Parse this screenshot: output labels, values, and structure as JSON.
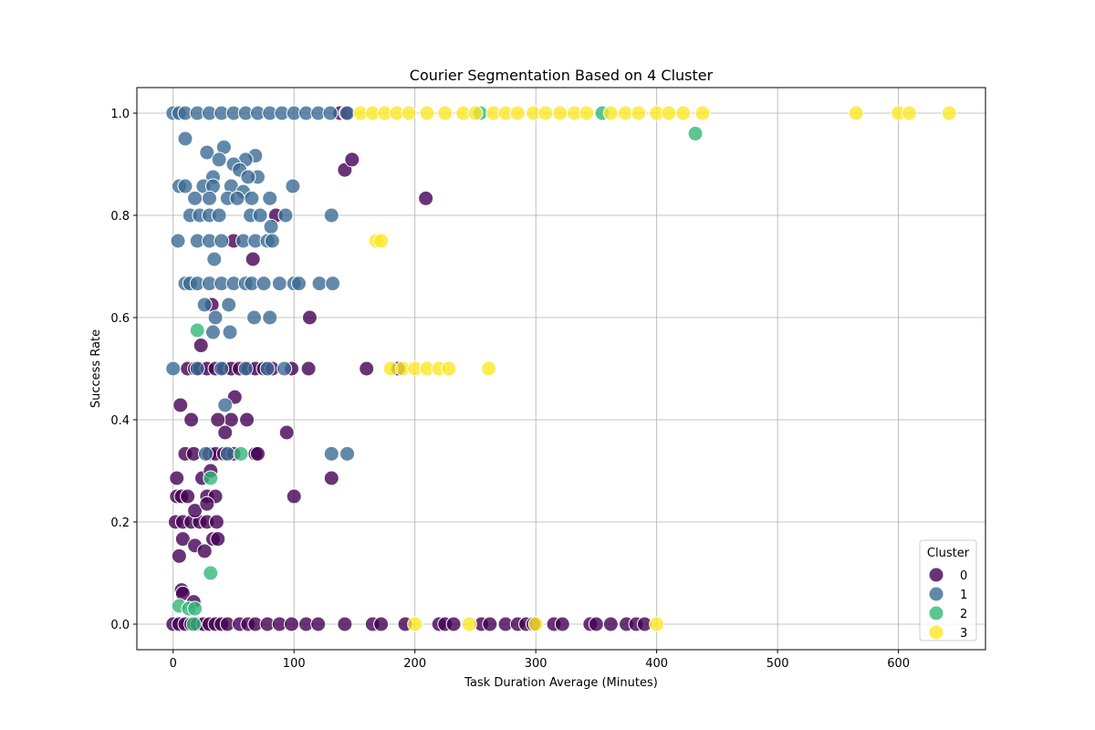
{
  "chart_data": {
    "type": "scatter",
    "title": "Courier Segmentation Based on 4 Cluster",
    "xlabel": "Task Duration Average (Minutes)",
    "ylabel": "Success Rate",
    "xlim": [
      -30,
      672
    ],
    "ylim": [
      -0.05,
      1.05
    ],
    "x_ticks": [
      0,
      100,
      200,
      300,
      400,
      500,
      600
    ],
    "y_ticks": [
      0.0,
      0.2,
      0.4,
      0.6,
      0.8,
      1.0
    ],
    "x_tick_labels": [
      "0",
      "100",
      "200",
      "300",
      "400",
      "500",
      "600"
    ],
    "y_tick_labels": [
      "0.0",
      "0.2",
      "0.4",
      "0.6",
      "0.8",
      "1.0"
    ],
    "grid": true,
    "legend": {
      "title": "Cluster",
      "placement": "lower-right",
      "entries": [
        "0",
        "1",
        "2",
        "3"
      ]
    },
    "series": [
      {
        "name": "0",
        "color": "#440154",
        "points": [
          [
            0,
            0
          ],
          [
            5,
            0
          ],
          [
            10,
            0
          ],
          [
            15,
            0
          ],
          [
            20,
            0
          ],
          [
            25,
            0
          ],
          [
            30,
            0
          ],
          [
            35,
            0
          ],
          [
            40,
            0
          ],
          [
            45,
            0
          ],
          [
            55,
            0
          ],
          [
            62,
            0
          ],
          [
            68,
            0
          ],
          [
            78,
            0
          ],
          [
            88,
            0
          ],
          [
            98,
            0
          ],
          [
            110,
            0
          ],
          [
            120,
            0
          ],
          [
            142,
            0
          ],
          [
            165,
            0
          ],
          [
            172,
            0
          ],
          [
            192,
            0
          ],
          [
            220,
            0
          ],
          [
            225,
            0
          ],
          [
            232,
            0
          ],
          [
            255,
            0
          ],
          [
            262,
            0
          ],
          [
            275,
            0
          ],
          [
            285,
            0
          ],
          [
            292,
            0
          ],
          [
            298,
            0
          ],
          [
            315,
            0
          ],
          [
            322,
            0
          ],
          [
            345,
            0
          ],
          [
            350,
            0
          ],
          [
            362,
            0
          ],
          [
            375,
            0
          ],
          [
            383,
            0
          ],
          [
            390,
            0
          ],
          [
            2,
            0.2
          ],
          [
            8,
            0.2
          ],
          [
            15,
            0.2
          ],
          [
            22,
            0.2
          ],
          [
            28,
            0.2
          ],
          [
            36,
            0.2
          ],
          [
            3,
            0.25
          ],
          [
            7,
            0.25
          ],
          [
            12,
            0.25
          ],
          [
            28,
            0.25
          ],
          [
            35,
            0.25
          ],
          [
            100,
            0.25
          ],
          [
            3,
            0.2857
          ],
          [
            24,
            0.2857
          ],
          [
            131,
            0.2857
          ],
          [
            8,
            0.1667
          ],
          [
            33,
            0.1667
          ],
          [
            37,
            0.1667
          ],
          [
            18,
            0.1538
          ],
          [
            26,
            0.1429
          ],
          [
            5,
            0.1333
          ],
          [
            7,
            0.0667
          ],
          [
            8,
            0.06
          ],
          [
            17,
            0.0435
          ],
          [
            18,
            0.2222
          ],
          [
            28,
            0.2353
          ],
          [
            31,
            0.3
          ],
          [
            10,
            0.3333
          ],
          [
            17,
            0.3333
          ],
          [
            30,
            0.3333
          ],
          [
            35,
            0.3333
          ],
          [
            42,
            0.3333
          ],
          [
            50,
            0.3333
          ],
          [
            68,
            0.3333
          ],
          [
            70,
            0.3333
          ],
          [
            48,
            0.4
          ],
          [
            37,
            0.4
          ],
          [
            15,
            0.4
          ],
          [
            61,
            0.4
          ],
          [
            6,
            0.4286
          ],
          [
            43,
            0.375
          ],
          [
            51,
            0.4444
          ],
          [
            94,
            0.375
          ],
          [
            12,
            0.5
          ],
          [
            18,
            0.5
          ],
          [
            22,
            0.5
          ],
          [
            28,
            0.5
          ],
          [
            35,
            0.5
          ],
          [
            42,
            0.5
          ],
          [
            48,
            0.5
          ],
          [
            55,
            0.5
          ],
          [
            62,
            0.5
          ],
          [
            68,
            0.5
          ],
          [
            75,
            0.5
          ],
          [
            82,
            0.5
          ],
          [
            98,
            0.5
          ],
          [
            112,
            0.5
          ],
          [
            160,
            0.5
          ],
          [
            186,
            0.5
          ],
          [
            23,
            0.5455
          ],
          [
            113,
            0.6
          ],
          [
            32,
            0.625
          ],
          [
            66,
            0.7143
          ],
          [
            50,
            0.75
          ],
          [
            85,
            0.8
          ],
          [
            142,
            0.8889
          ],
          [
            148,
            0.9091
          ],
          [
            209,
            0.8333
          ],
          [
            138,
            1.0
          ],
          [
            143,
            1.0
          ]
        ]
      },
      {
        "name": "1",
        "color": "#3b6b95",
        "points": [
          [
            0,
            1.0
          ],
          [
            5,
            1.0
          ],
          [
            10,
            1.0
          ],
          [
            20,
            1.0
          ],
          [
            30,
            1.0
          ],
          [
            40,
            1.0
          ],
          [
            50,
            1.0
          ],
          [
            60,
            1.0
          ],
          [
            70,
            1.0
          ],
          [
            80,
            1.0
          ],
          [
            90,
            1.0
          ],
          [
            100,
            1.0
          ],
          [
            110,
            1.0
          ],
          [
            120,
            1.0
          ],
          [
            130,
            1.0
          ],
          [
            144,
            1.0
          ],
          [
            10,
            0.95
          ],
          [
            42,
            0.9333
          ],
          [
            28,
            0.9231
          ],
          [
            68,
            0.9167
          ],
          [
            38,
            0.9091
          ],
          [
            60,
            0.9091
          ],
          [
            50,
            0.9
          ],
          [
            55,
            0.8889
          ],
          [
            70,
            0.875
          ],
          [
            33,
            0.875
          ],
          [
            62,
            0.875
          ],
          [
            5,
            0.8571
          ],
          [
            10,
            0.8571
          ],
          [
            25,
            0.8571
          ],
          [
            33,
            0.8571
          ],
          [
            48,
            0.8571
          ],
          [
            58,
            0.8462
          ],
          [
            99,
            0.8571
          ],
          [
            18,
            0.8333
          ],
          [
            30,
            0.8333
          ],
          [
            45,
            0.8333
          ],
          [
            53,
            0.8333
          ],
          [
            65,
            0.8333
          ],
          [
            80,
            0.8333
          ],
          [
            14,
            0.8
          ],
          [
            22,
            0.8
          ],
          [
            30,
            0.8
          ],
          [
            38,
            0.8
          ],
          [
            64,
            0.8
          ],
          [
            72,
            0.8
          ],
          [
            93,
            0.8
          ],
          [
            131,
            0.8
          ],
          [
            81,
            0.7778
          ],
          [
            4,
            0.75
          ],
          [
            20,
            0.75
          ],
          [
            30,
            0.75
          ],
          [
            40,
            0.75
          ],
          [
            58,
            0.75
          ],
          [
            68,
            0.75
          ],
          [
            78,
            0.75
          ],
          [
            82,
            0.75
          ],
          [
            34,
            0.7143
          ],
          [
            10,
            0.6667
          ],
          [
            14,
            0.6667
          ],
          [
            20,
            0.6667
          ],
          [
            30,
            0.6667
          ],
          [
            40,
            0.6667
          ],
          [
            50,
            0.6667
          ],
          [
            60,
            0.6667
          ],
          [
            65,
            0.6667
          ],
          [
            75,
            0.6667
          ],
          [
            88,
            0.6667
          ],
          [
            100,
            0.6667
          ],
          [
            104,
            0.6667
          ],
          [
            121,
            0.6667
          ],
          [
            132,
            0.6667
          ],
          [
            26,
            0.625
          ],
          [
            46,
            0.625
          ],
          [
            35,
            0.6
          ],
          [
            67,
            0.6
          ],
          [
            80,
            0.6
          ],
          [
            33,
            0.5714
          ],
          [
            47,
            0.5714
          ],
          [
            0,
            0.5
          ],
          [
            20,
            0.5
          ],
          [
            40,
            0.5
          ],
          [
            60,
            0.5
          ],
          [
            78,
            0.5
          ],
          [
            92,
            0.5
          ],
          [
            43,
            0.4286
          ],
          [
            27,
            0.3333
          ],
          [
            45,
            0.3333
          ],
          [
            131,
            0.3333
          ],
          [
            144,
            0.3333
          ]
        ]
      },
      {
        "name": "2",
        "color": "#35b779",
        "points": [
          [
            20,
            0.575
          ],
          [
            31,
            0.2857
          ],
          [
            31,
            0.1
          ],
          [
            56,
            0.3333
          ],
          [
            5,
            0.0357
          ],
          [
            13,
            0.0303
          ],
          [
            18,
            0.0303
          ],
          [
            17,
            0.0
          ],
          [
            254,
            1.0
          ],
          [
            355,
            1.0
          ],
          [
            432,
            0.96
          ]
        ]
      },
      {
        "name": "3",
        "color": "#fde725",
        "points": [
          [
            155,
            1.0
          ],
          [
            165,
            1.0
          ],
          [
            175,
            1.0
          ],
          [
            185,
            1.0
          ],
          [
            195,
            1.0
          ],
          [
            210,
            1.0
          ],
          [
            225,
            1.0
          ],
          [
            240,
            1.0
          ],
          [
            250,
            1.0
          ],
          [
            265,
            1.0
          ],
          [
            275,
            1.0
          ],
          [
            285,
            1.0
          ],
          [
            298,
            1.0
          ],
          [
            308,
            1.0
          ],
          [
            320,
            1.0
          ],
          [
            332,
            1.0
          ],
          [
            342,
            1.0
          ],
          [
            362,
            1.0
          ],
          [
            374,
            1.0
          ],
          [
            385,
            1.0
          ],
          [
            400,
            1.0
          ],
          [
            410,
            1.0
          ],
          [
            422,
            1.0
          ],
          [
            438,
            1.0
          ],
          [
            565,
            1.0
          ],
          [
            600,
            1.0
          ],
          [
            609,
            1.0
          ],
          [
            642,
            1.0
          ],
          [
            168,
            0.75
          ],
          [
            172,
            0.75
          ],
          [
            180,
            0.5
          ],
          [
            190,
            0.5
          ],
          [
            200,
            0.5
          ],
          [
            210,
            0.5
          ],
          [
            220,
            0.5
          ],
          [
            228,
            0.5
          ],
          [
            261,
            0.5
          ],
          [
            200,
            0.0
          ],
          [
            245,
            0.0
          ],
          [
            300,
            0.0
          ],
          [
            400,
            0.0
          ]
        ]
      }
    ]
  }
}
